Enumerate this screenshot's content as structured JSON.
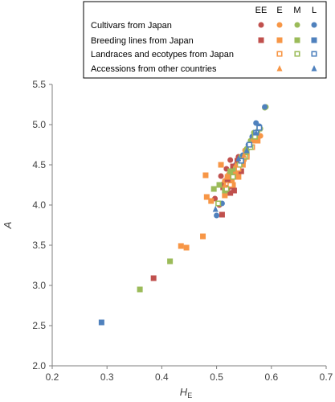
{
  "chart_data": {
    "type": "scatter",
    "xlabel": "H",
    "xlabel_sub": "E",
    "ylabel": "A",
    "xlim": [
      0.2,
      0.7
    ],
    "ylim": [
      2.0,
      5.5
    ],
    "x_ticks": [
      "0.2",
      "0.3",
      "0.4",
      "0.5",
      "0.6",
      "0.7"
    ],
    "y_ticks": [
      "2.0",
      "2.5",
      "3.0",
      "3.5",
      "4.0",
      "4.5",
      "5.0",
      "5.5"
    ],
    "grid": false,
    "legend_position": "top-right",
    "legend_columns": [
      "EE",
      "E",
      "M",
      "L"
    ],
    "legend_rows": [
      {
        "label": "Cultivars from Japan",
        "marker": "circle",
        "fill": "solid",
        "groups": [
          "EE",
          "E",
          "M",
          "L"
        ]
      },
      {
        "label": "Breeding lines from Japan",
        "marker": "square",
        "fill": "solid",
        "groups": [
          "EE",
          "E",
          "M",
          "L"
        ]
      },
      {
        "label": "Landraces and ecotypes from Japan",
        "marker": "square",
        "fill": "hollow",
        "groups": [
          "E",
          "M",
          "L"
        ]
      },
      {
        "label": "Accessions from other countries",
        "marker": "triangle",
        "fill": "solid",
        "groups": [
          "E",
          "L"
        ]
      }
    ],
    "colors": {
      "EE": "#c0504d",
      "E": "#f79646",
      "M": "#9bbb59",
      "L": "#4f81bd"
    },
    "series": [
      {
        "category": "Cultivars from Japan",
        "group": "EE",
        "marker": "circle",
        "fill": "solid",
        "points": [
          [
            0.497,
            4.08
          ],
          [
            0.508,
            4.36
          ],
          [
            0.512,
            4.26
          ],
          [
            0.518,
            4.45
          ],
          [
            0.525,
            4.56
          ],
          [
            0.532,
            4.42
          ],
          [
            0.54,
            4.6
          ],
          [
            0.548,
            4.52
          ],
          [
            0.522,
            4.22
          ],
          [
            0.505,
            4.0
          ]
        ]
      },
      {
        "category": "Cultivars from Japan",
        "group": "E",
        "marker": "circle",
        "fill": "solid",
        "points": [
          [
            0.515,
            4.3
          ],
          [
            0.522,
            4.38
          ],
          [
            0.53,
            4.46
          ],
          [
            0.538,
            4.52
          ],
          [
            0.545,
            4.6
          ],
          [
            0.552,
            4.68
          ],
          [
            0.56,
            4.75
          ],
          [
            0.565,
            4.82
          ],
          [
            0.57,
            4.84
          ],
          [
            0.575,
            4.85
          ],
          [
            0.58,
            4.86
          ],
          [
            0.528,
            4.3
          ],
          [
            0.535,
            4.4
          ],
          [
            0.55,
            4.56
          ]
        ]
      },
      {
        "category": "Cultivars from Japan",
        "group": "M",
        "marker": "circle",
        "fill": "solid",
        "points": [
          [
            0.555,
            4.7
          ],
          [
            0.562,
            4.8
          ],
          [
            0.568,
            4.9
          ],
          [
            0.575,
            4.92
          ],
          [
            0.58,
            4.95
          ],
          [
            0.588,
            5.21
          ],
          [
            0.59,
            5.22
          ],
          [
            0.545,
            4.6
          ]
        ]
      },
      {
        "category": "Cultivars from Japan",
        "group": "L",
        "marker": "circle",
        "fill": "solid",
        "points": [
          [
            0.5,
            3.87
          ],
          [
            0.51,
            4.02
          ],
          [
            0.535,
            4.5
          ],
          [
            0.548,
            4.62
          ],
          [
            0.558,
            4.75
          ],
          [
            0.565,
            4.85
          ],
          [
            0.572,
            5.02
          ],
          [
            0.578,
            4.98
          ],
          [
            0.588,
            5.22
          ]
        ]
      },
      {
        "category": "Breeding lines from Japan",
        "group": "EE",
        "marker": "square",
        "fill": "solid",
        "points": [
          [
            0.385,
            3.09
          ],
          [
            0.51,
            3.88
          ],
          [
            0.512,
            4.22
          ],
          [
            0.525,
            4.15
          ],
          [
            0.52,
            4.32
          ],
          [
            0.53,
            4.48
          ],
          [
            0.538,
            4.55
          ],
          [
            0.545,
            4.42
          ],
          [
            0.532,
            4.18
          ]
        ]
      },
      {
        "category": "Breeding lines from Japan",
        "group": "E",
        "marker": "square",
        "fill": "solid",
        "points": [
          [
            0.435,
            3.49
          ],
          [
            0.445,
            3.47
          ],
          [
            0.475,
            3.61
          ],
          [
            0.482,
            4.1
          ],
          [
            0.48,
            4.37
          ],
          [
            0.49,
            4.05
          ],
          [
            0.508,
            4.5
          ],
          [
            0.515,
            4.12
          ],
          [
            0.52,
            4.35
          ],
          [
            0.53,
            4.25
          ],
          [
            0.54,
            4.35
          ],
          [
            0.548,
            4.5
          ],
          [
            0.555,
            4.62
          ],
          [
            0.56,
            4.72
          ],
          [
            0.568,
            4.8
          ],
          [
            0.575,
            4.8
          ]
        ]
      },
      {
        "category": "Breeding lines from Japan",
        "group": "M",
        "marker": "square",
        "fill": "solid",
        "points": [
          [
            0.36,
            2.95
          ],
          [
            0.415,
            3.3
          ],
          [
            0.495,
            4.2
          ],
          [
            0.505,
            4.25
          ],
          [
            0.515,
            4.18
          ],
          [
            0.525,
            4.42
          ],
          [
            0.535,
            4.45
          ],
          [
            0.545,
            4.55
          ],
          [
            0.555,
            4.65
          ],
          [
            0.562,
            4.72
          ],
          [
            0.57,
            4.85
          ]
        ]
      },
      {
        "category": "Breeding lines from Japan",
        "group": "L",
        "marker": "square",
        "fill": "solid",
        "points": [
          [
            0.29,
            2.54
          ],
          [
            0.53,
            4.35
          ],
          [
            0.55,
            4.6
          ],
          [
            0.56,
            4.72
          ]
        ]
      },
      {
        "category": "Landraces and ecotypes from Japan",
        "group": "E",
        "marker": "square",
        "fill": "hollow",
        "points": [
          [
            0.525,
            4.25
          ],
          [
            0.54,
            4.45
          ],
          [
            0.555,
            4.6
          ],
          [
            0.565,
            4.72
          ]
        ]
      },
      {
        "category": "Landraces and ecotypes from Japan",
        "group": "M",
        "marker": "square",
        "fill": "hollow",
        "points": [
          [
            0.503,
            4.02
          ],
          [
            0.518,
            4.2
          ],
          [
            0.53,
            4.35
          ],
          [
            0.542,
            4.5
          ],
          [
            0.552,
            4.6
          ],
          [
            0.562,
            4.72
          ],
          [
            0.57,
            4.85
          ],
          [
            0.578,
            4.95
          ]
        ]
      },
      {
        "category": "Landraces and ecotypes from Japan",
        "group": "L",
        "marker": "square",
        "fill": "hollow",
        "points": [
          [
            0.545,
            4.55
          ],
          [
            0.56,
            4.75
          ],
          [
            0.572,
            4.9
          ],
          [
            0.578,
            4.96
          ]
        ]
      },
      {
        "category": "Accessions from other countries",
        "group": "E",
        "marker": "triangle",
        "fill": "solid",
        "points": [
          [
            0.515,
            4.25
          ],
          [
            0.535,
            4.5
          ],
          [
            0.55,
            4.62
          ]
        ]
      },
      {
        "category": "Accessions from other countries",
        "group": "L",
        "marker": "triangle",
        "fill": "solid",
        "points": [
          [
            0.498,
            3.95
          ],
          [
            0.54,
            4.58
          ],
          [
            0.555,
            4.68
          ],
          [
            0.572,
            4.9
          ]
        ]
      }
    ]
  }
}
